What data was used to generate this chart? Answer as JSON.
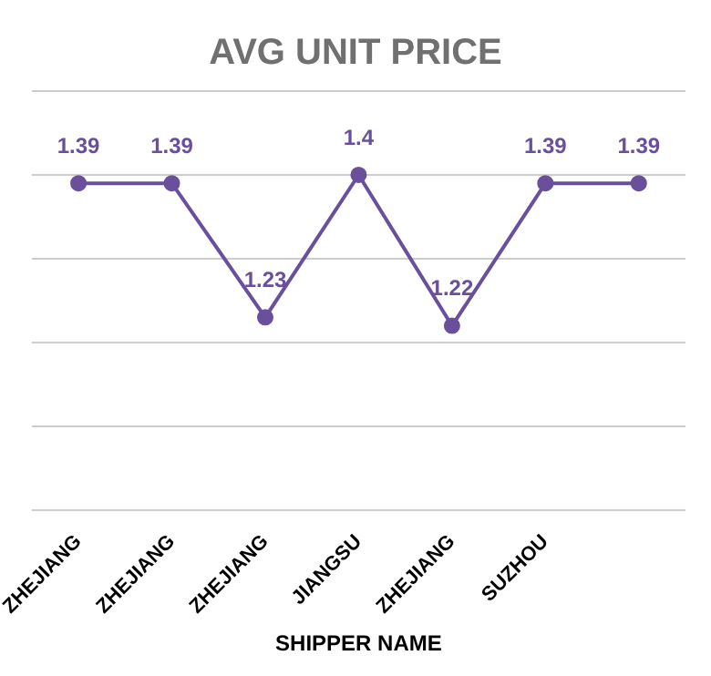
{
  "chart_data": {
    "type": "line",
    "title": "AVG UNIT PRICE",
    "xlabel": "SHIPPER NAME",
    "categories": [
      "ZHEJIANG",
      "ZHEJIANG",
      "ZHEJIANG",
      "JIANGSU",
      "ZHEJIANG",
      "SUZHOU",
      null
    ],
    "series": [
      {
        "color": "#6a4f9c",
        "values": [
          1.39,
          1.39,
          1.23,
          1.4,
          1.22,
          1.39,
          1.39
        ]
      }
    ],
    "ylim": [
      1,
      1.5
    ],
    "yticks": [
      {
        "value": 1,
        "label": null
      },
      {
        "value": 1.1,
        "label": null
      },
      {
        "value": 1.2,
        "label": null
      },
      {
        "value": 1.3,
        "label": null
      },
      {
        "value": 1.4,
        "label": null
      },
      {
        "value": 1.5,
        "label": null
      }
    ],
    "grid": "y",
    "tick_labels": "x",
    "data_labels": true,
    "marker": "circle",
    "line_style": "solid",
    "legend": false
  }
}
